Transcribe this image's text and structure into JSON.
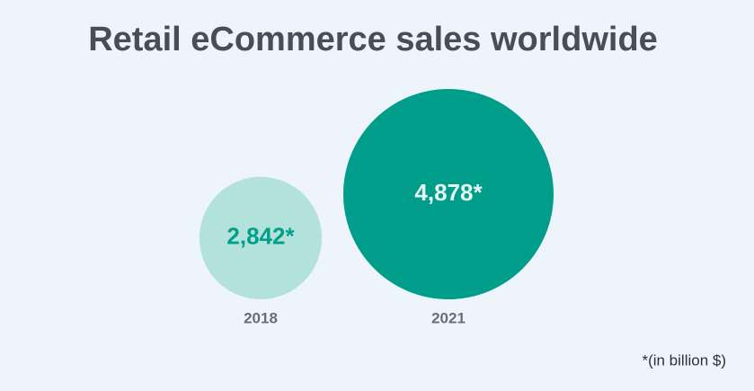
{
  "chart_data": {
    "type": "bubble",
    "title": "Retail eCommerce sales worldwide",
    "categories": [
      "2018",
      "2021"
    ],
    "values": [
      2842,
      4878
    ],
    "value_labels": [
      "2,842*",
      "4,878*"
    ],
    "colors": [
      "#b3e2dc",
      "#009e8a"
    ],
    "label_colors": [
      "#00a08a",
      "#e8f5f2"
    ],
    "note": "*(in billion $)"
  }
}
